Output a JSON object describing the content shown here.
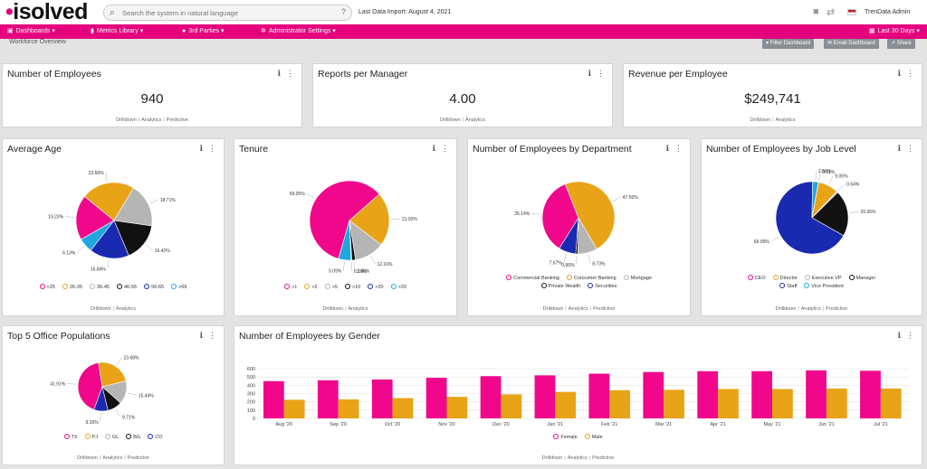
{
  "header": {
    "logo": "isolved",
    "search_placeholder": "Search the system in natural language",
    "last_import": "Last Data Import: August 4, 2021",
    "user": "TrenData Admin"
  },
  "nav": {
    "items": [
      "Dashboards",
      "Metrics Library",
      "3rd Parties",
      "Administrator Settings"
    ],
    "date_range": "Last 30 Days"
  },
  "subheader": {
    "page_title": "Workforce Overview",
    "buttons": [
      "Filter Dashboard",
      "Email Dashboard",
      "Share"
    ]
  },
  "kpis": [
    {
      "title": "Number of Employees",
      "value": "940",
      "links": [
        "Drilldown",
        "Analytics",
        "Predictive"
      ]
    },
    {
      "title": "Reports per Manager",
      "value": "4.00",
      "links": [
        "Drilldown",
        "Analytics"
      ]
    },
    {
      "title": "Revenue per Employee",
      "value": "$249,741",
      "links": [
        "Drilldown",
        "Analytics"
      ]
    }
  ],
  "colors": {
    "pink": "#f0078c",
    "orange": "#e8a317",
    "gray": "#b5b5b5",
    "black": "#111111",
    "navy": "#1a2ab0",
    "cyan": "#1fa7e0",
    "accent": "#e5007e"
  },
  "chart_data": [
    {
      "type": "pie",
      "title": "Average Age",
      "labels": [
        "<25",
        "26-35",
        "36-45",
        "46-55",
        "56-65",
        ">65"
      ],
      "values": [
        19.23,
        22.66,
        18.71,
        16.42,
        16.84,
        6.13
      ],
      "legend": "bottom",
      "links": [
        "Drilldown",
        "Analytics"
      ]
    },
    {
      "type": "pie",
      "title": "Tenure",
      "labels": [
        ">1",
        ">2",
        ">5",
        ">10",
        ">20",
        ">20"
      ],
      "values": [
        59.05,
        21.93,
        12.16,
        1.46,
        0.31,
        5.09
      ],
      "legend": "bottom",
      "links": [
        "Drilldown",
        "Analytics"
      ]
    },
    {
      "type": "pie",
      "title": "Number of Employees by Department",
      "labels": [
        "Commercial Banking",
        "Consumer Banking",
        "Mortgage",
        "Private Wealth",
        "Securities"
      ],
      "values": [
        35.14,
        47.5,
        8.73,
        0.96,
        7.67
      ],
      "legend": "bottom",
      "links": [
        "Drilldown",
        "Analytics",
        "Predictive"
      ]
    },
    {
      "type": "pie",
      "title": "Number of Employees by Job Level",
      "labels": [
        "CEO",
        "Director",
        "Executive VP",
        "Manager",
        "Staff",
        "Vice President"
      ],
      "values": [
        0.11,
        9.05,
        0.64,
        20.66,
        66.99,
        2.56
      ],
      "legend": "bottom",
      "links": [
        "Drilldown",
        "Analytics",
        "Predictive"
      ]
    },
    {
      "type": "pie",
      "title": "Top 5 Office Populations",
      "labels": [
        "TX",
        "PJ",
        "GL",
        "BG",
        "CO"
      ],
      "values": [
        41.91,
        23.68,
        15.44,
        9.71,
        9.26
      ],
      "legend": "bottom",
      "links": [
        "Drilldown",
        "Analytics",
        "Predictive"
      ]
    },
    {
      "type": "bar",
      "title": "Number of Employees by Gender",
      "categories": [
        "Aug '20",
        "Sep '20",
        "Oct '20",
        "Nov '20",
        "Dec '20",
        "Jan '21",
        "Feb '21",
        "Mar '21",
        "Apr '21",
        "May '21",
        "Jun '21",
        "Jul '21"
      ],
      "series": [
        {
          "name": "Female",
          "values": [
            450,
            460,
            470,
            490,
            510,
            520,
            540,
            560,
            570,
            570,
            580,
            575
          ]
        },
        {
          "name": "Male",
          "values": [
            225,
            230,
            245,
            260,
            290,
            320,
            340,
            345,
            355,
            355,
            360,
            360
          ]
        }
      ],
      "yticks": [
        0,
        100,
        200,
        300,
        400,
        500,
        600
      ],
      "ylim": [
        0,
        600
      ],
      "grid": true,
      "legend": "bottom",
      "links": [
        "Drilldown",
        "Analytics",
        "Predictive"
      ]
    }
  ]
}
